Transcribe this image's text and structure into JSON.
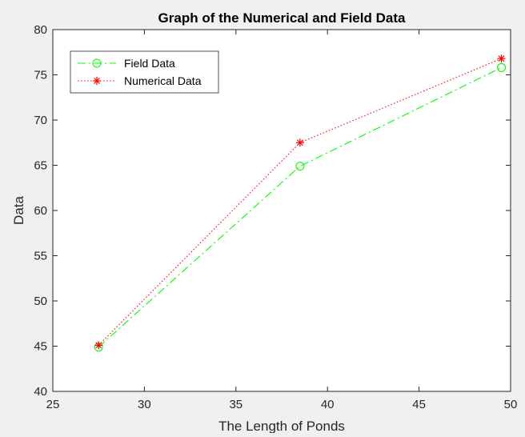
{
  "chart_data": {
    "type": "line",
    "title": "Graph of the Numerical and Field Data",
    "xlabel": "The Length of Ponds",
    "ylabel": "Data",
    "xlim": [
      25,
      50
    ],
    "ylim": [
      40,
      80
    ],
    "xticks": [
      25,
      30,
      35,
      40,
      45,
      50
    ],
    "yticks": [
      40,
      45,
      50,
      55,
      60,
      65,
      70,
      75,
      80
    ],
    "grid": false,
    "legend_position": "top-left",
    "x": [
      27.5,
      38.5,
      49.5
    ],
    "series": [
      {
        "name": "Field Data",
        "values": [
          44.9,
          64.9,
          75.8
        ],
        "color": "#00ff00",
        "line_style": "dash-dot",
        "marker": "circle"
      },
      {
        "name": "Numerical Data",
        "values": [
          45.1,
          67.5,
          76.8
        ],
        "color": "#ff0000",
        "line_style": "dotted",
        "marker": "asterisk"
      }
    ]
  },
  "colors": {
    "figure_background": "#f0f0f0",
    "axes_background": "#ffffff",
    "axis_color": "#262626"
  }
}
